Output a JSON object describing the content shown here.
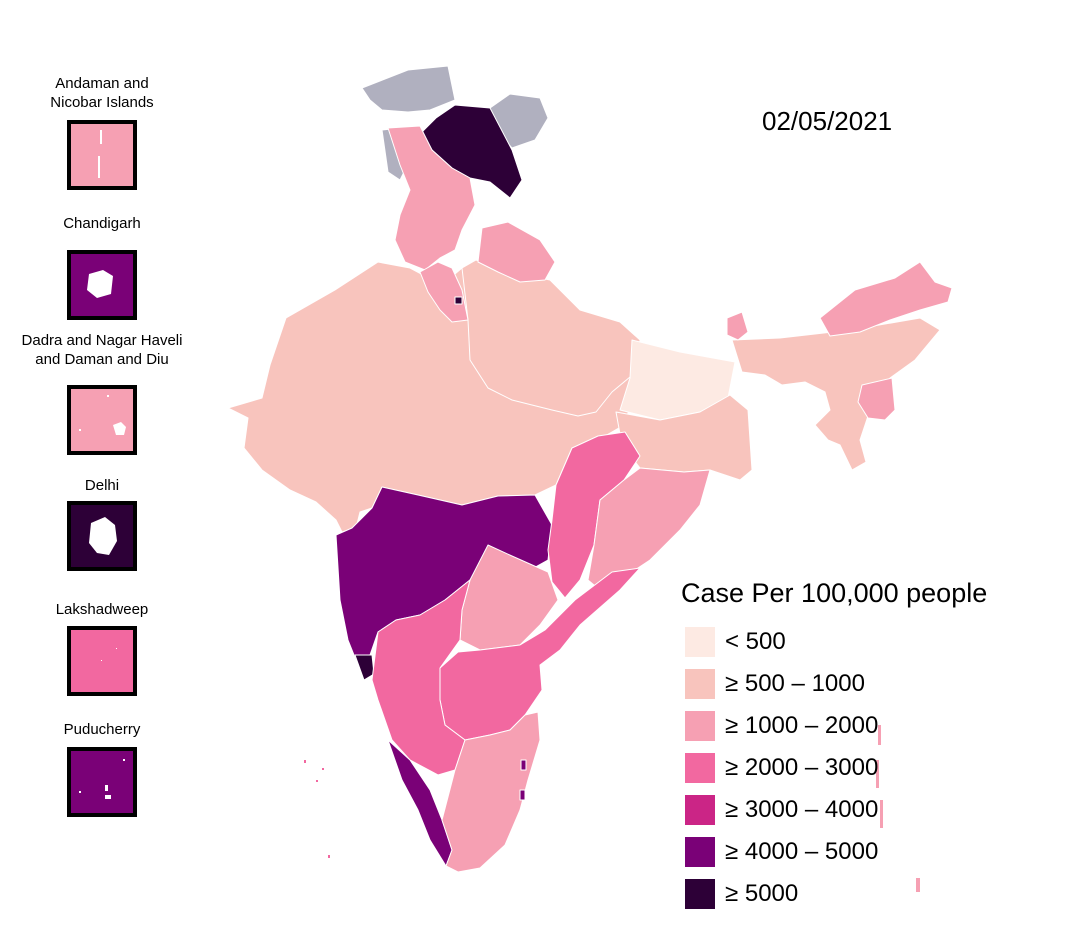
{
  "date": "02/05/2021",
  "legend": {
    "title": "Case Per 100,000 people",
    "items": [
      {
        "label": "< 500",
        "color": "#fdeae3"
      },
      {
        "label": "≥ 500 – 1000",
        "color": "#f8c4bd"
      },
      {
        "label": "≥ 1000 – 2000",
        "color": "#f6a0b3"
      },
      {
        "label": "≥ 2000 – 3000",
        "color": "#f268a0"
      },
      {
        "label": "≥ 3000 – 4000",
        "color": "#cb2586"
      },
      {
        "label": "≥ 4000 – 5000",
        "color": "#7a0177"
      },
      {
        "label": "≥ 5000",
        "color": "#2d0037"
      }
    ]
  },
  "no_data_color": "#b0b0bf",
  "insets": [
    {
      "name": "Andaman and Nicobar Islands",
      "lines": [
        "Andaman and",
        "Nicobar Islands"
      ],
      "color": "#f6a0b3"
    },
    {
      "name": "Chandigarh",
      "lines": [
        "Chandigarh"
      ],
      "color": "#7a0177"
    },
    {
      "name": "Dadra and Nagar Haveli and Daman and Diu",
      "lines": [
        "Dadra and Nagar Haveli",
        "and Daman and Diu"
      ],
      "color": "#f6a0b3"
    },
    {
      "name": "Delhi",
      "lines": [
        "Delhi"
      ],
      "color": "#2d0037"
    },
    {
      "name": "Lakshadweep",
      "lines": [
        "Lakshadweep"
      ],
      "color": "#f268a0"
    },
    {
      "name": "Puducherry",
      "lines": [
        "Puducherry"
      ],
      "color": "#7a0177"
    }
  ],
  "regions": [
    {
      "id": "rajasthan-etc",
      "color": "#f8c4bd"
    },
    {
      "id": "uttar-pradesh",
      "color": "#f8c4bd"
    },
    {
      "id": "bihar",
      "color": "#fdeae3"
    },
    {
      "id": "jharkhand-wb",
      "color": "#f8c4bd"
    },
    {
      "id": "northeast",
      "color": "#f8c4bd"
    },
    {
      "id": "arunachal",
      "color": "#f6a0b3"
    },
    {
      "id": "mizoram",
      "color": "#f6a0b3"
    },
    {
      "id": "sikkim",
      "color": "#f6a0b3"
    },
    {
      "id": "kashmir-pok",
      "color": "#b0b0bf"
    },
    {
      "id": "ladakh",
      "color": "#2d0037"
    },
    {
      "id": "himachal-punjab",
      "color": "#f6a0b3"
    },
    {
      "id": "uttarakhand",
      "color": "#f6a0b3"
    },
    {
      "id": "haryana",
      "color": "#f6a0b3"
    },
    {
      "id": "maharashtra",
      "color": "#7a0177"
    },
    {
      "id": "goa",
      "color": "#2d0037"
    },
    {
      "id": "chhattisgarh",
      "color": "#f268a0"
    },
    {
      "id": "odisha",
      "color": "#f6a0b3"
    },
    {
      "id": "telangana",
      "color": "#f6a0b3"
    },
    {
      "id": "andhra",
      "color": "#f268a0"
    },
    {
      "id": "karnataka",
      "color": "#f268a0"
    },
    {
      "id": "kerala",
      "color": "#7a0177"
    },
    {
      "id": "tamil-nadu",
      "color": "#f6a0b3"
    }
  ]
}
